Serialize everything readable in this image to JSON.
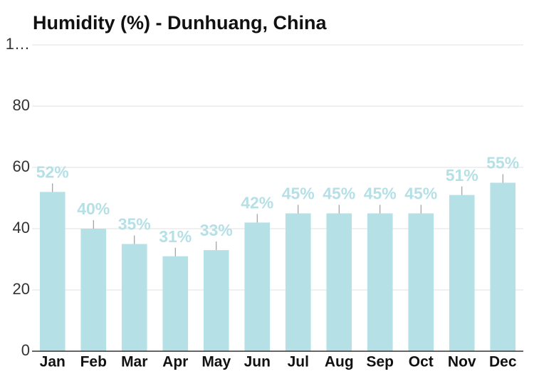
{
  "chart_data": {
    "type": "bar",
    "title": "Humidity (%) - Dunhuang, China",
    "categories": [
      "Jan",
      "Feb",
      "Mar",
      "Apr",
      "May",
      "Jun",
      "Jul",
      "Aug",
      "Sep",
      "Oct",
      "Nov",
      "Dec"
    ],
    "values": [
      52,
      40,
      35,
      31,
      33,
      42,
      45,
      45,
      45,
      45,
      51,
      55
    ],
    "value_labels": [
      "52%",
      "40%",
      "35%",
      "31%",
      "33%",
      "42%",
      "45%",
      "45%",
      "45%",
      "45%",
      "51%",
      "55%"
    ],
    "color": "#b5e0e6",
    "ylim": [
      0,
      100
    ],
    "yticks": [
      0,
      20,
      40,
      60,
      80,
      {
        "value": 100,
        "label": "1…"
      }
    ],
    "grid": true
  }
}
